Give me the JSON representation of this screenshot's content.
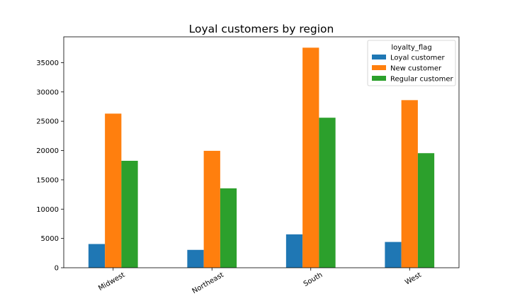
{
  "chart_data": {
    "type": "bar",
    "title": "Loyal customers by region",
    "xlabel": "",
    "ylabel": "",
    "categories": [
      "Midwest",
      "Northeast",
      "South",
      "West"
    ],
    "series": [
      {
        "name": "Loyal customer",
        "color": "#1f77b4",
        "values": [
          4050,
          3050,
          5700,
          4400
        ]
      },
      {
        "name": "New customer",
        "color": "#ff7f0e",
        "values": [
          26300,
          19950,
          37550,
          28600
        ]
      },
      {
        "name": "Regular customer",
        "color": "#2ca02c",
        "values": [
          18250,
          13550,
          25600,
          19550
        ]
      }
    ],
    "ylim": [
      0,
      39400
    ],
    "yticks": [
      0,
      5000,
      10000,
      15000,
      20000,
      25000,
      30000,
      35000
    ],
    "legend": {
      "title": "loyalty_flag",
      "placement": "top-right"
    },
    "grid": false
  }
}
